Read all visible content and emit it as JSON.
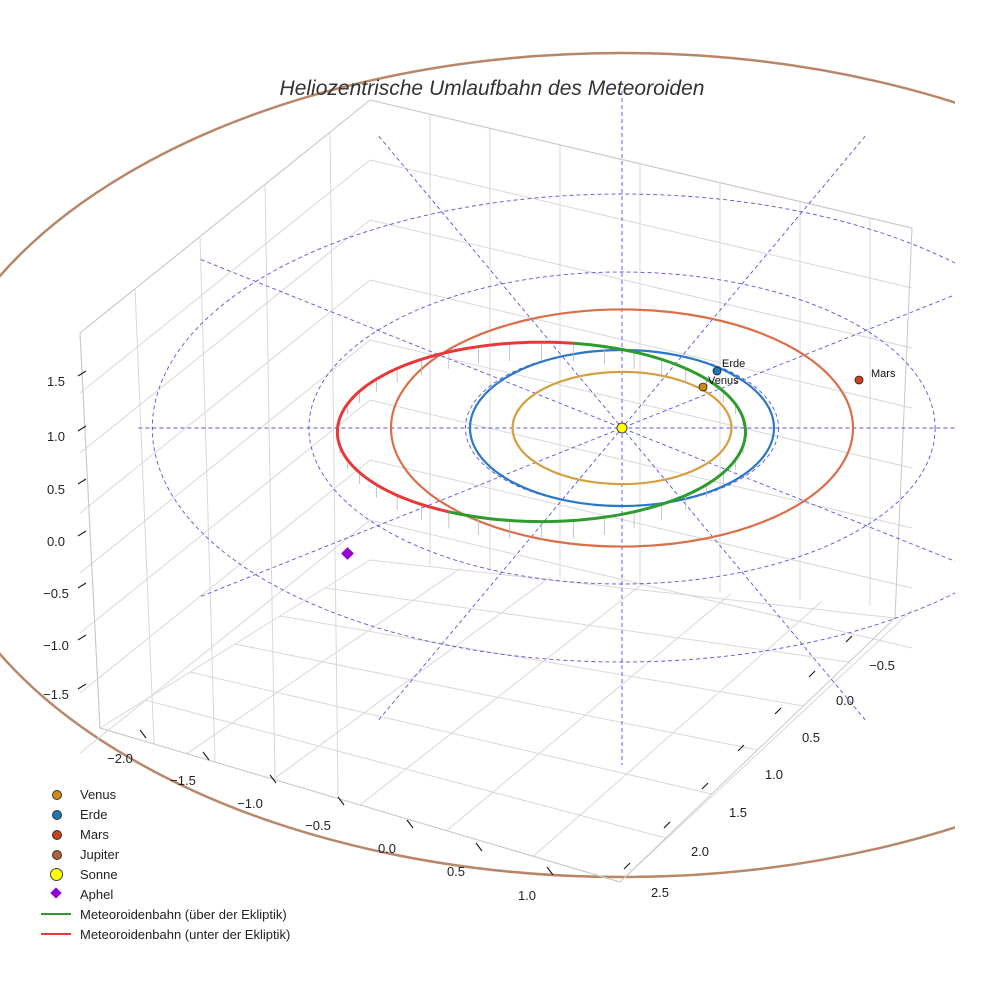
{
  "chart_data": {
    "type": "line",
    "title": "Heliozentrische Umlaufbahn des Meteoroiden",
    "x_ticks": [
      "−2.0",
      "−1.5",
      "−1.0",
      "−0.5",
      "0.0",
      "0.5",
      "1.0"
    ],
    "y_ticks": [
      "−0.5",
      "0.0",
      "0.5",
      "1.0",
      "1.5",
      "2.0",
      "2.5"
    ],
    "z_ticks": [
      "1.5",
      "1.0",
      "0.5",
      "0.0",
      "−0.5",
      "−1.0",
      "−1.5"
    ],
    "xlim": [
      -2.2,
      1.2
    ],
    "ylim": [
      -0.8,
      2.7
    ],
    "zlim": [
      -1.8,
      1.8
    ],
    "orbits": [
      {
        "name": "Venus",
        "radius_au": 0.72,
        "color": "#d4a040"
      },
      {
        "name": "Erde",
        "radius_au": 1.0,
        "color": "#2b78c8"
      },
      {
        "name": "Mars",
        "radius_au": 1.52,
        "color": "#d9704a"
      },
      {
        "name": "Jupiter",
        "radius_au": 5.2,
        "color": "#b8876a"
      }
    ],
    "ecliptic_grid_rings_au": [
      1,
      2,
      3
    ],
    "planets": [
      {
        "name": "Venus",
        "label": "Venus",
        "x": 0.55,
        "y": 0.3,
        "z": 0.0,
        "color": "#d08a12"
      },
      {
        "name": "Erde",
        "label": "Erde",
        "x": 0.62,
        "y": 0.78,
        "z": 0.0,
        "color": "#1f77b4"
      },
      {
        "name": "Mars",
        "label": "Mars",
        "x": 1.5,
        "y": 0.3,
        "z": 0.0,
        "color": "#c8421a"
      }
    ],
    "sun": {
      "name": "Sonne",
      "x": 0,
      "y": 0,
      "z": 0,
      "color": "#ffff00"
    },
    "aphelion": {
      "name": "Aphel",
      "x": -1.8,
      "y": -0.9,
      "z": 0.0,
      "color": "#9400d3"
    },
    "meteoroid_orbit": {
      "center_au": [
        -0.53,
        -0.05
      ],
      "semi_axes_au": [
        1.37,
        1.15
      ],
      "above_color": "#2e9b2e",
      "below_color": "#e8383a",
      "above_label": "Meteoroidenbahn (über der Ekliptik)",
      "below_label": "Meteoroidenbahn (unter der Ekliptik)"
    },
    "legend": [
      {
        "label": "Venus",
        "kind": "dot",
        "color": "#d08a12"
      },
      {
        "label": "Erde",
        "kind": "dot",
        "color": "#1f77b4"
      },
      {
        "label": "Mars",
        "kind": "dot",
        "color": "#c8421a"
      },
      {
        "label": "Jupiter",
        "kind": "dot",
        "color": "#b3603a"
      },
      {
        "label": "Sonne",
        "kind": "sun",
        "color": "#ffff00"
      },
      {
        "label": "Aphel",
        "kind": "diamond",
        "color": "#9400d3"
      },
      {
        "label": "Meteoroidenbahn (über der Ekliptik)",
        "kind": "line",
        "color": "#2e9b2e"
      },
      {
        "label": "Meteoroidenbahn (unter der Ekliptik)",
        "kind": "line",
        "color": "#e8383a"
      }
    ]
  }
}
